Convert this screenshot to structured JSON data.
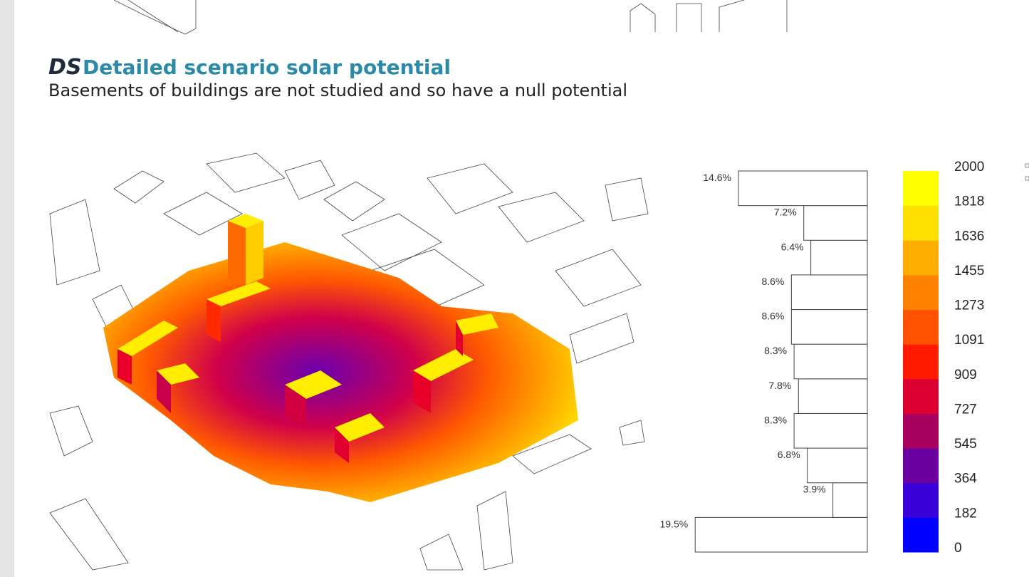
{
  "header": {
    "code": "DS",
    "title": "Detailed scenario solar potential",
    "subtitle": "Basements of buildings are not studied and so have a null potential"
  },
  "chart_data": {
    "type": "histogram",
    "bins": [
      0,
      182,
      364,
      545,
      727,
      909,
      1091,
      1273,
      1455,
      1636,
      1818,
      2000
    ],
    "values": [
      19.5,
      3.9,
      6.8,
      8.3,
      7.8,
      8.3,
      8.6,
      8.6,
      6.4,
      7.2,
      14.6
    ],
    "value_labels": [
      "19.5%",
      "3.9%",
      "6.8%",
      "8.3%",
      "7.8%",
      "8.3%",
      "8.6%",
      "8.6%",
      "6.4%",
      "7.2%",
      "14.6%"
    ],
    "colors": [
      "#0000ff",
      "#3a00d8",
      "#6a00a0",
      "#a8005e",
      "#dc0030",
      "#ff1a00",
      "#ff5200",
      "#ff8200",
      "#ffad00",
      "#ffdf00",
      "#ffff00"
    ]
  }
}
